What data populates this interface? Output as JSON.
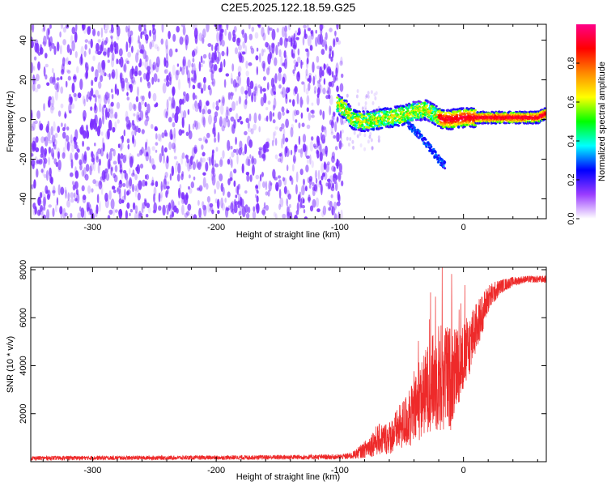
{
  "title": "C2E5.2025.122.18.59.G25",
  "top_panel": {
    "xlabel": "Height of straight line (km)",
    "ylabel": "Frequency (Hz)",
    "colorbar_label": "Normalized spectral amplitude"
  },
  "bottom_panel": {
    "xlabel": "Height of straight line (km)",
    "ylabel": "SNR (10 * v/v)"
  },
  "colors": {
    "background": "#ffffff",
    "noise": "#7a2cff",
    "snr_line": "#ee2a2a"
  },
  "chart_data": [
    {
      "type": "heatmap",
      "name": "spectrogram",
      "xlim": [
        -350,
        67
      ],
      "ylim": [
        -50,
        48
      ],
      "xticks": [
        -300,
        -200,
        -100,
        0
      ],
      "xtick_labels": [
        "-300",
        "-200",
        "-100",
        "0"
      ],
      "yticks": [
        -40,
        -20,
        0,
        20,
        40
      ],
      "ytick_labels": [
        "-40",
        "-20",
        "0",
        "20",
        "40"
      ],
      "noise_region_x": [
        -350,
        -98
      ],
      "signal_track": {
        "x": [
          -102,
          -95,
          -90,
          -80,
          -70,
          -60,
          -50,
          -40,
          -30,
          -25,
          -20,
          -15,
          -10,
          0,
          10,
          20,
          40,
          60,
          67
        ],
        "freq_hz": [
          8,
          5,
          0,
          -1,
          0,
          1,
          2,
          4,
          5,
          3,
          1,
          0,
          0,
          1,
          1,
          1,
          1,
          1,
          3
        ]
      },
      "side_branch": {
        "x": [
          -45,
          -40,
          -35,
          -30,
          -25,
          -20,
          -15
        ],
        "freq_hz": [
          -2,
          -5,
          -8,
          -12,
          -16,
          -20,
          -23
        ]
      },
      "colorbar": {
        "range": [
          0,
          1
        ],
        "ticks": [
          0.0,
          0.2,
          0.4,
          0.6,
          0.8
        ],
        "tick_labels": [
          "0.0",
          "0.2",
          "0.4",
          "0.6",
          "0.8"
        ],
        "colors": [
          "#ffffff",
          "#9a3cff",
          "#0000ff",
          "#00ffff",
          "#00ff00",
          "#ffff00",
          "#ff8800",
          "#ff0000",
          "#ff0088"
        ]
      }
    },
    {
      "type": "line",
      "name": "snr",
      "xlim": [
        -350,
        67
      ],
      "ylim": [
        0,
        8100
      ],
      "xticks": [
        -300,
        -200,
        -100,
        0
      ],
      "xtick_labels": [
        "-300",
        "-200",
        "-100",
        "0"
      ],
      "yticks": [
        2000,
        4000,
        6000,
        8000
      ],
      "ytick_labels": [
        "2000",
        "4000",
        "6000",
        "8000"
      ],
      "envelope": {
        "x": [
          -350,
          -200,
          -100,
          -90,
          -80,
          -70,
          -60,
          -50,
          -40,
          -30,
          -25,
          -20,
          -15,
          -10,
          -5,
          0,
          10,
          20,
          30,
          40,
          50,
          67
        ],
        "mean": [
          150,
          170,
          200,
          250,
          500,
          900,
          1000,
          1500,
          2000,
          3000,
          3300,
          3500,
          3500,
          3500,
          4000,
          4300,
          5500,
          6800,
          7300,
          7500,
          7600,
          7600
        ],
        "spread": [
          90,
          90,
          110,
          150,
          350,
          650,
          700,
          1000,
          1400,
          1800,
          2000,
          2400,
          2200,
          2200,
          1700,
          1500,
          1100,
          600,
          300,
          200,
          150,
          150
        ]
      }
    }
  ]
}
